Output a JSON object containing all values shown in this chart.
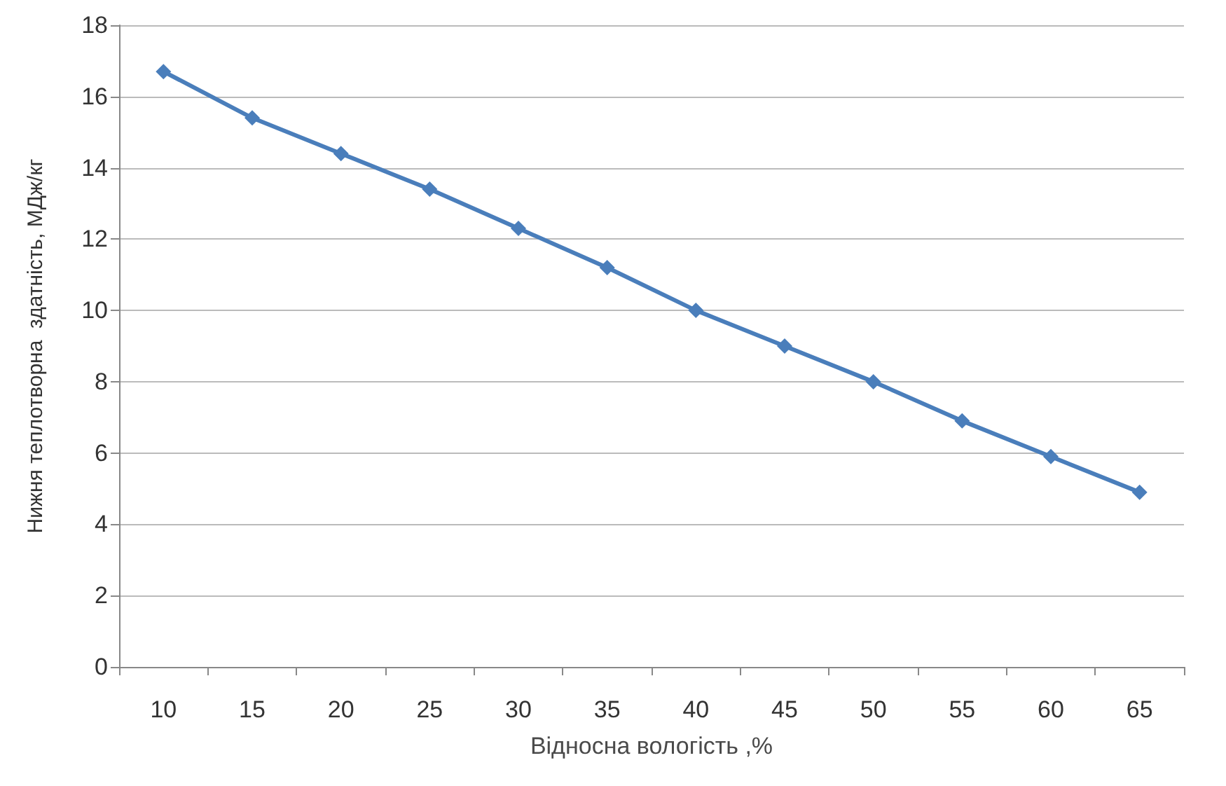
{
  "chart_data": {
    "type": "line",
    "xlabel": "Відносна вологість ,%",
    "ylabel": "Нижня теплотворна  здатність, МДж/кг",
    "categories": [
      "10",
      "15",
      "20",
      "25",
      "30",
      "35",
      "40",
      "45",
      "50",
      "55",
      "60",
      "65"
    ],
    "series": [
      {
        "color": "#4a7ebb",
        "values": [
          16.7,
          15.4,
          14.4,
          13.4,
          12.3,
          11.2,
          10.0,
          9.0,
          8.0,
          6.9,
          5.9,
          4.9
        ]
      }
    ],
    "ylim": [
      0,
      18
    ],
    "yticks": [
      0,
      2,
      4,
      6,
      8,
      10,
      12,
      14,
      16,
      18
    ],
    "grid": "y",
    "marker": "diamond",
    "line_style": "solid"
  }
}
